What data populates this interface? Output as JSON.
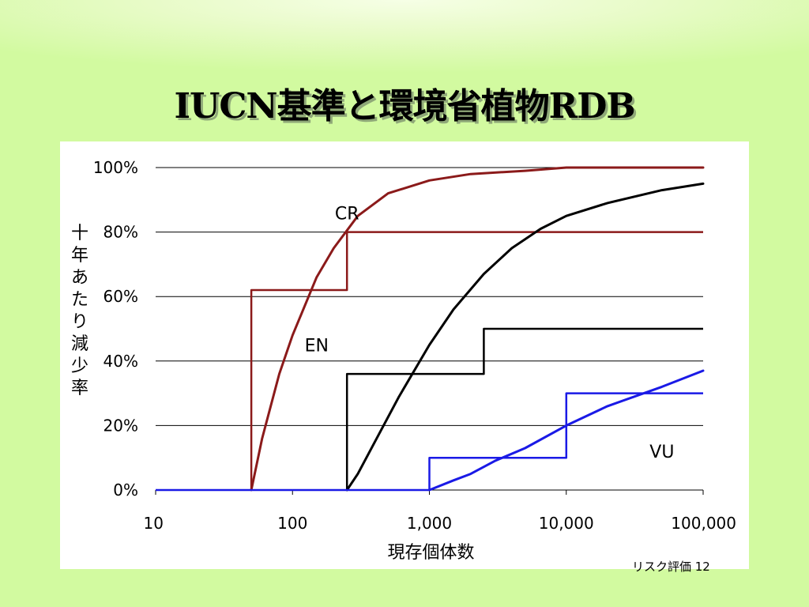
{
  "slide": {
    "title": "IUCN基準と環境省植物RDB",
    "footer": "リスク評価 12"
  },
  "chart_data": {
    "type": "line",
    "title": "",
    "xlabel": "現存個体数",
    "ylabel": "十年あたり減少率",
    "x_scale": "log",
    "xlim": [
      10,
      100000
    ],
    "ylim": [
      0,
      1
    ],
    "x_ticks": [
      10,
      100,
      1000,
      10000,
      100000
    ],
    "x_tick_labels": [
      "10",
      "100",
      "1,000",
      "10,000",
      "100,000"
    ],
    "y_ticks": [
      0,
      0.2,
      0.4,
      0.6,
      0.8,
      1.0
    ],
    "y_tick_labels": [
      "0%",
      "20%",
      "40%",
      "60%",
      "80%",
      "100%"
    ],
    "grid": "horizontal",
    "legend": "none",
    "colors": {
      "CR": "#8b1a1a",
      "EN": "#000000",
      "VU": "#1a1ae6"
    },
    "annotations": [
      {
        "text": "CR",
        "x": 250,
        "y": 0.84
      },
      {
        "text": "EN",
        "x": 150,
        "y": 0.43
      },
      {
        "text": "VU",
        "x": 50000,
        "y": 0.1
      }
    ],
    "series": [
      {
        "name": "CR",
        "kind": "step",
        "points": [
          [
            50,
            0
          ],
          [
            50,
            0.62
          ],
          [
            250,
            0.62
          ],
          [
            250,
            0.8
          ],
          [
            100000,
            0.8
          ]
        ]
      },
      {
        "name": "CR",
        "kind": "curve",
        "points": [
          [
            50,
            0
          ],
          [
            60,
            0.16
          ],
          [
            80,
            0.36
          ],
          [
            100,
            0.48
          ],
          [
            150,
            0.66
          ],
          [
            200,
            0.75
          ],
          [
            300,
            0.85
          ],
          [
            500,
            0.92
          ],
          [
            1000,
            0.96
          ],
          [
            2000,
            0.98
          ],
          [
            5000,
            0.99
          ],
          [
            10000,
            1.0
          ],
          [
            100000,
            1.0
          ]
        ]
      },
      {
        "name": "EN",
        "kind": "step",
        "points": [
          [
            250,
            0
          ],
          [
            250,
            0.36
          ],
          [
            2500,
            0.36
          ],
          [
            2500,
            0.5
          ],
          [
            100000,
            0.5
          ]
        ]
      },
      {
        "name": "EN",
        "kind": "curve",
        "points": [
          [
            250,
            0
          ],
          [
            300,
            0.05
          ],
          [
            400,
            0.15
          ],
          [
            600,
            0.29
          ],
          [
            1000,
            0.45
          ],
          [
            1500,
            0.56
          ],
          [
            2500,
            0.67
          ],
          [
            4000,
            0.75
          ],
          [
            6500,
            0.81
          ],
          [
            10000,
            0.85
          ],
          [
            20000,
            0.89
          ],
          [
            50000,
            0.93
          ],
          [
            100000,
            0.95
          ]
        ]
      },
      {
        "name": "VU",
        "kind": "step",
        "points": [
          [
            10,
            0
          ],
          [
            1000,
            0
          ],
          [
            1000,
            0.1
          ],
          [
            10000,
            0.1
          ],
          [
            10000,
            0.3
          ],
          [
            100000,
            0.3
          ]
        ]
      },
      {
        "name": "VU",
        "kind": "curve",
        "points": [
          [
            1000,
            0
          ],
          [
            1500,
            0.03
          ],
          [
            2000,
            0.05
          ],
          [
            3000,
            0.09
          ],
          [
            5000,
            0.13
          ],
          [
            10000,
            0.2
          ],
          [
            20000,
            0.26
          ],
          [
            50000,
            0.32
          ],
          [
            100000,
            0.37
          ]
        ]
      }
    ]
  }
}
